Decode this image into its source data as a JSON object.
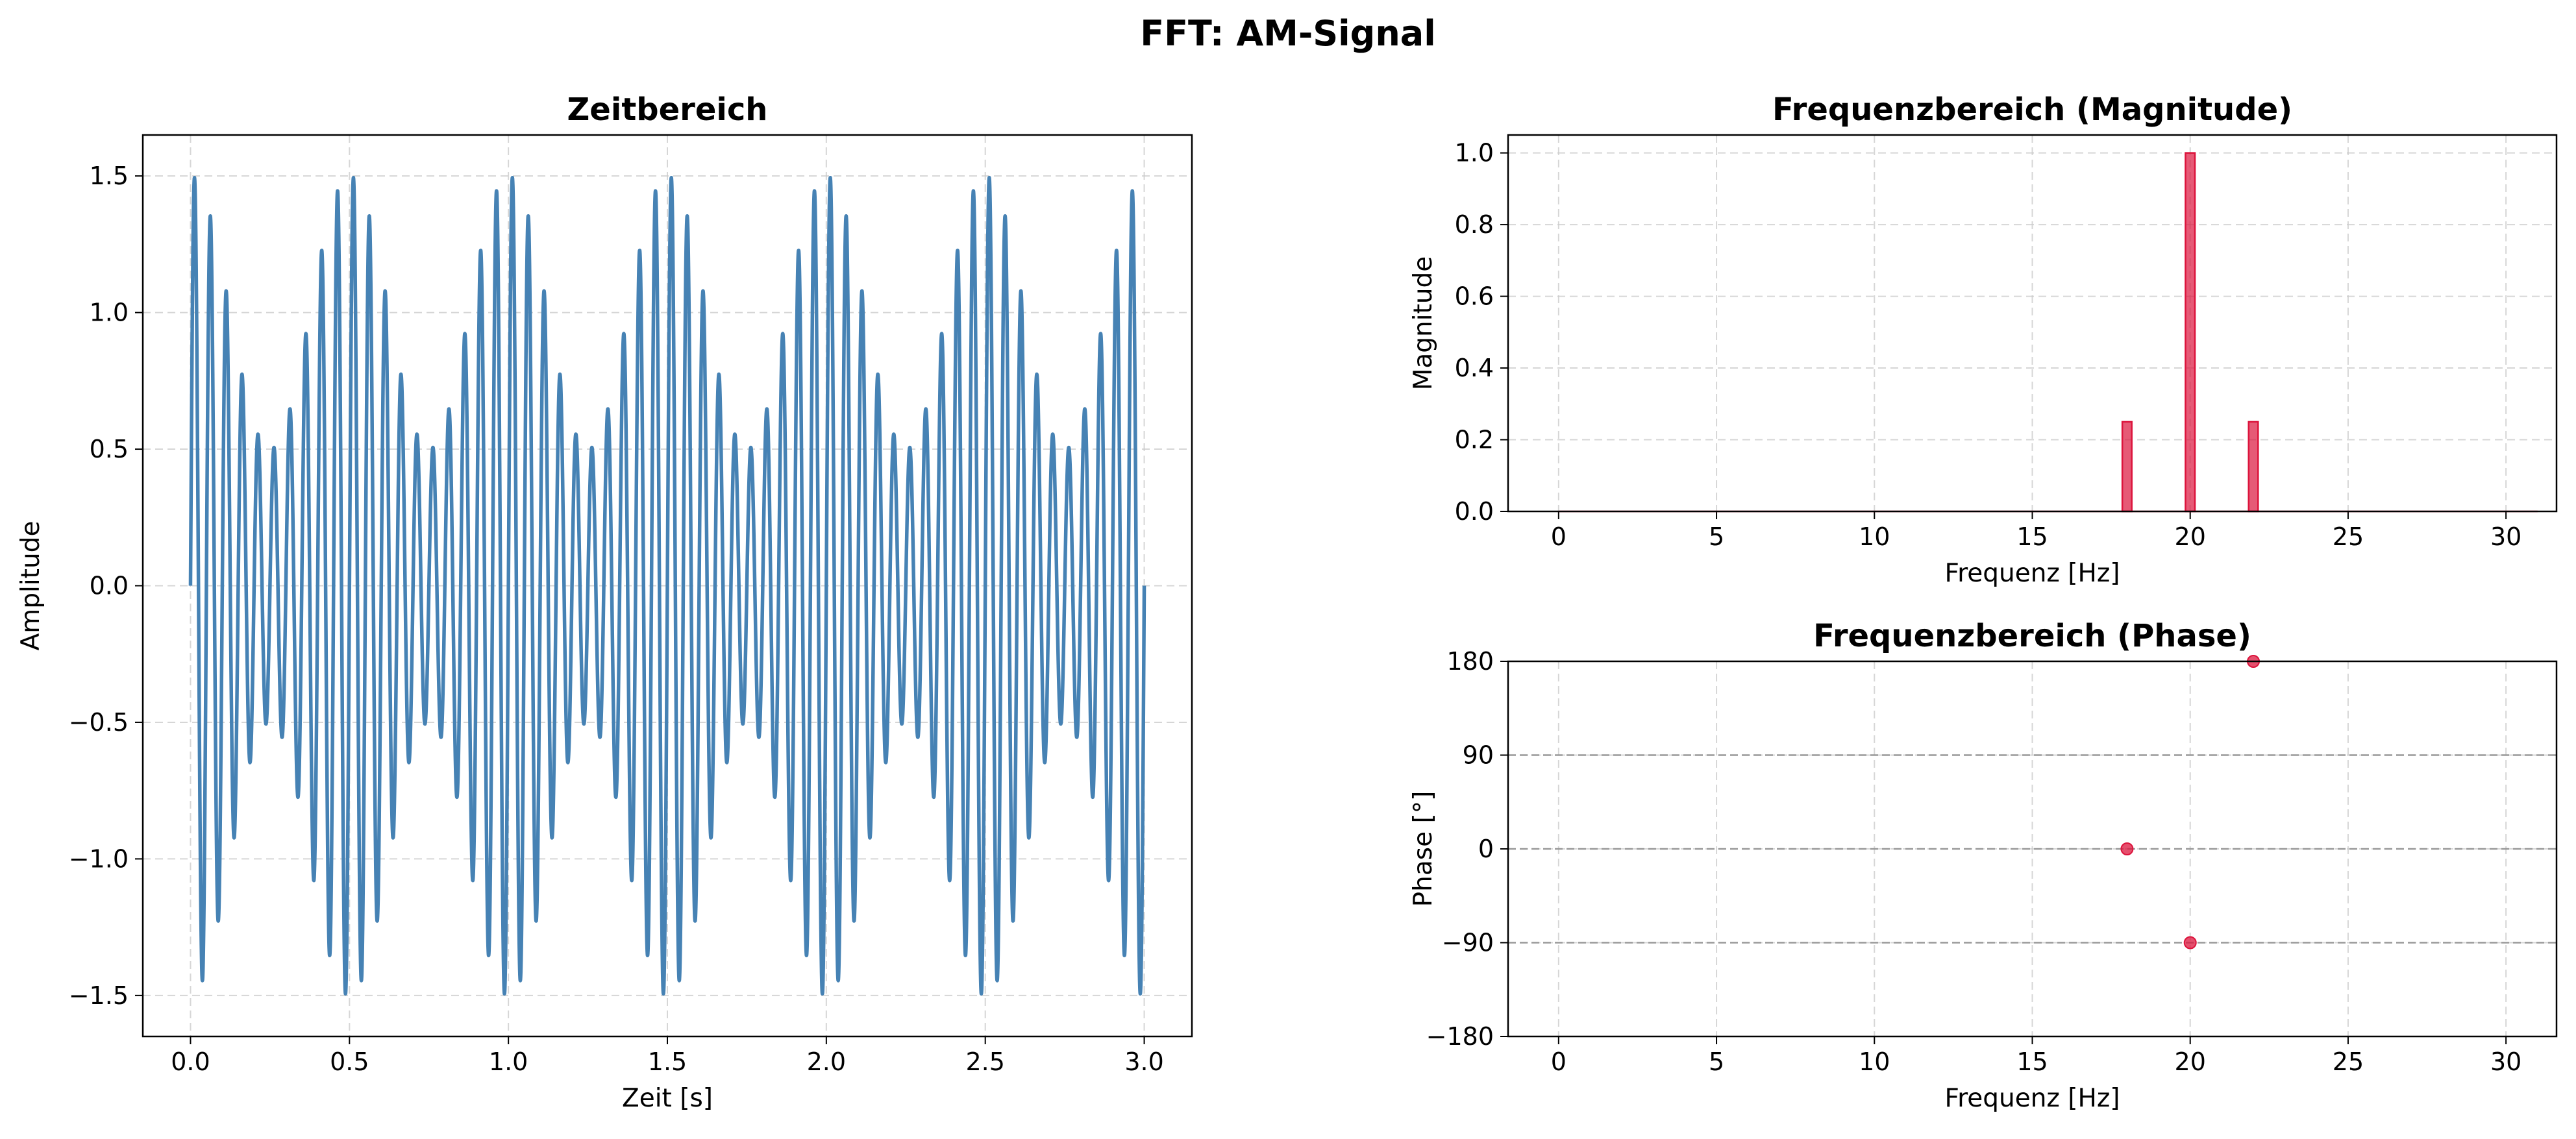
{
  "figure": {
    "title": "FFT: AM-Signal"
  },
  "colors": {
    "time_line": "#4682b4",
    "freq": "#dc143c",
    "grid": "#cccccc",
    "ref_line": "#999999",
    "axis": "#000000"
  },
  "chart_data": [
    {
      "type": "line",
      "title": "Zeitbereich",
      "xlabel": "Zeit [s]",
      "ylabel": "Amplitude",
      "xlim": [
        -0.15,
        3.15
      ],
      "ylim": [
        -1.65,
        1.65
      ],
      "xticks": [
        0.0,
        0.5,
        1.0,
        1.5,
        2.0,
        2.5,
        3.0
      ],
      "xtick_labels": [
        "0.0",
        "0.5",
        "1.0",
        "1.5",
        "2.0",
        "2.5",
        "3.0"
      ],
      "yticks": [
        -1.5,
        -1.0,
        -0.5,
        0.0,
        0.5,
        1.0,
        1.5
      ],
      "ytick_labels": [
        "−1.5",
        "−1.0",
        "−0.5",
        "0.0",
        "0.5",
        "1.0",
        "1.5"
      ],
      "grid": true,
      "signal": {
        "formula": "(1 + 0.5*cos(2*pi*2*t)) * sin(2*pi*20*t)",
        "t_start": 0,
        "t_end": 3,
        "carrier_hz": 20,
        "modulation_hz": 2,
        "modulation_index": 0.5
      }
    },
    {
      "type": "bar",
      "title": "Frequenzbereich (Magnitude)",
      "xlabel": "Frequenz [Hz]",
      "ylabel": "Magnitude",
      "xlim": [
        -1.6,
        31.6
      ],
      "ylim": [
        0,
        1.05
      ],
      "xticks": [
        0,
        5,
        10,
        15,
        20,
        25,
        30
      ],
      "xtick_labels": [
        "0",
        "5",
        "10",
        "15",
        "20",
        "25",
        "30"
      ],
      "yticks": [
        0.0,
        0.2,
        0.4,
        0.6,
        0.8,
        1.0
      ],
      "ytick_labels": [
        "0.0",
        "0.2",
        "0.4",
        "0.6",
        "0.8",
        "1.0"
      ],
      "grid": true,
      "x": [
        18,
        20,
        22
      ],
      "values": [
        0.25,
        1.0,
        0.25
      ],
      "baseline": {
        "x": [
          0,
          31
        ],
        "value": 0.0
      }
    },
    {
      "type": "scatter",
      "title": "Frequenzbereich (Phase)",
      "xlabel": "Frequenz [Hz]",
      "ylabel": "Phase [°]",
      "xlim": [
        -1.6,
        31.6
      ],
      "ylim": [
        -180,
        180
      ],
      "xticks": [
        0,
        5,
        10,
        15,
        20,
        25,
        30
      ],
      "xtick_labels": [
        "0",
        "5",
        "10",
        "15",
        "20",
        "25",
        "30"
      ],
      "yticks": [
        -180,
        -90,
        0,
        90,
        180
      ],
      "ytick_labels": [
        "−180",
        "−90",
        "0",
        "90",
        "180"
      ],
      "grid": true,
      "reference_lines": [
        -90,
        0,
        90
      ],
      "x": [
        18,
        20,
        22
      ],
      "y": [
        0,
        -90,
        180
      ]
    }
  ]
}
